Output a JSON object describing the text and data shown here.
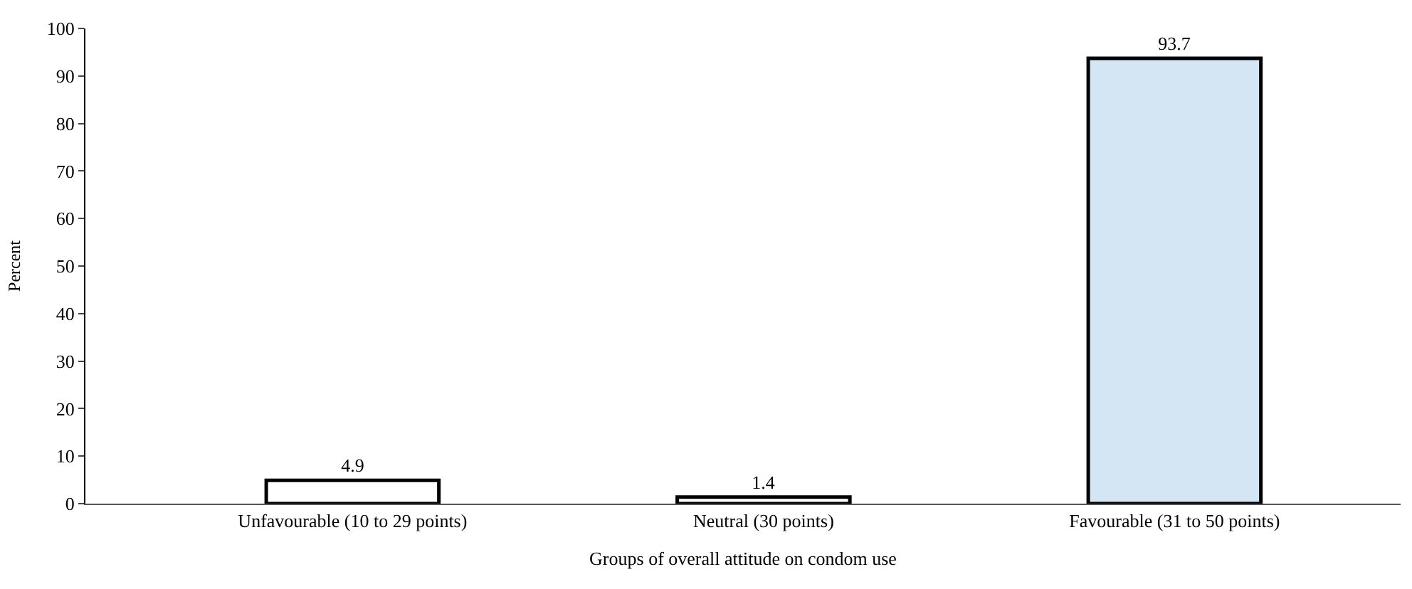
{
  "chart_data": {
    "type": "bar",
    "xlabel": "Groups of overall attitude on condom use",
    "ylabel": "Percent",
    "categories": [
      "Unfavourable (10 to 29 points)",
      "Neutral (30 points)",
      "Favourable (31 to 50 points)"
    ],
    "values": [
      4.9,
      1.4,
      93.7
    ],
    "colors": [
      "#ffffff",
      "#ffffff",
      "#d4e6f4"
    ],
    "ylim": [
      0,
      100
    ],
    "yticks": [
      0,
      10,
      20,
      30,
      40,
      50,
      60,
      70,
      80,
      90,
      100
    ],
    "data_labels": true
  }
}
